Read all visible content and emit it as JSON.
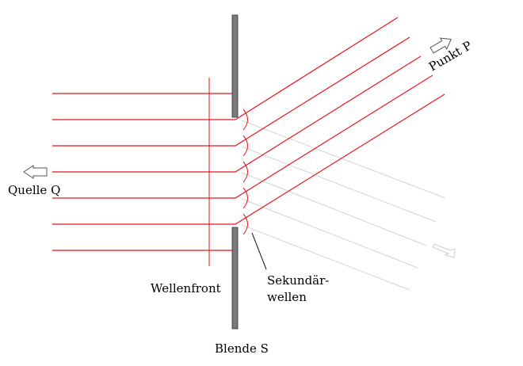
{
  "labels": {
    "source": "Quelle Q",
    "point": "Punkt P",
    "wavefront": "Wellenfront",
    "secondary_line1": "Sekundär-",
    "secondary_line2": "wellen",
    "aperture": "Blende S"
  },
  "colors": {
    "ray": "#e8141c",
    "aperture": "#7a7a7a",
    "aperture_edge": "#333333",
    "faint_ray": "#d4d4d4",
    "arrow": "#555555",
    "text": "#000000"
  }
}
